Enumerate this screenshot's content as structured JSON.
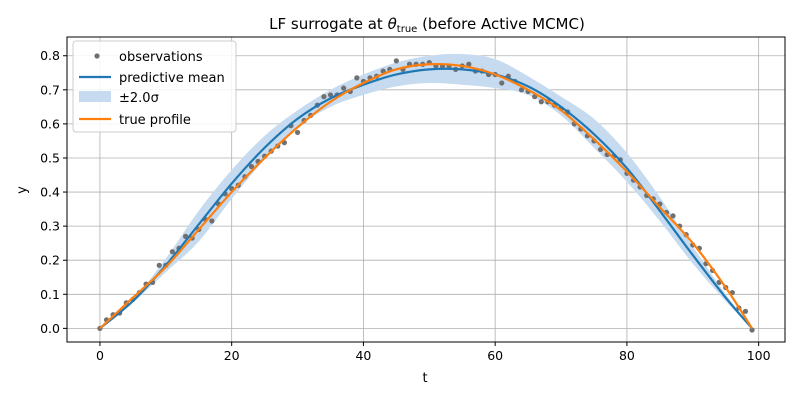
{
  "chart_data": {
    "type": "line",
    "title": "LF surrogate at θtrue (before Active MCMC)",
    "title_parts": {
      "prefix": "LF surrogate at ",
      "symbol": "θ",
      "subscript": "true",
      "suffix": " (before Active MCMC)"
    },
    "xlabel": "t",
    "ylabel": "y",
    "xlim": [
      -5,
      104
    ],
    "ylim": [
      -0.04,
      0.855
    ],
    "xticks": [
      0,
      20,
      40,
      60,
      80,
      100
    ],
    "yticks": [
      0.0,
      0.1,
      0.2,
      0.3,
      0.4,
      0.5,
      0.6,
      0.7,
      0.8
    ],
    "xtick_labels": [
      "0",
      "20",
      "40",
      "60",
      "80",
      "100"
    ],
    "ytick_labels": [
      "0.0",
      "0.1",
      "0.2",
      "0.3",
      "0.4",
      "0.5",
      "0.6",
      "0.7",
      "0.8"
    ],
    "grid": true,
    "legend": {
      "position": "upper-left",
      "entries": [
        {
          "label": "observations",
          "kind": "marker",
          "color": "#707070"
        },
        {
          "label": "predictive mean",
          "kind": "line",
          "color": "#1f77b4"
        },
        {
          "label": "±2.0σ",
          "kind": "band",
          "color": "#c6dbef"
        },
        {
          "label": "true profile",
          "kind": "line",
          "color": "#ff7f0e"
        }
      ]
    },
    "observations": {
      "name": "observations",
      "color": "#707070",
      "x": [
        0,
        1,
        2,
        3,
        4,
        5,
        6,
        7,
        8,
        9,
        10,
        11,
        12,
        13,
        14,
        15,
        16,
        17,
        18,
        19,
        20,
        21,
        22,
        23,
        24,
        25,
        26,
        27,
        28,
        29,
        30,
        31,
        32,
        33,
        34,
        35,
        36,
        37,
        38,
        39,
        40,
        41,
        42,
        43,
        44,
        45,
        46,
        47,
        48,
        49,
        50,
        51,
        52,
        53,
        54,
        55,
        56,
        57,
        58,
        59,
        60,
        61,
        62,
        63,
        64,
        65,
        66,
        67,
        68,
        69,
        70,
        71,
        72,
        73,
        74,
        75,
        76,
        77,
        78,
        79,
        80,
        81,
        82,
        83,
        84,
        85,
        86,
        87,
        88,
        89,
        90,
        91,
        92,
        93,
        94,
        95,
        96,
        97,
        98,
        99
      ],
      "y": [
        0.0,
        0.025,
        0.04,
        0.045,
        0.075,
        0.085,
        0.105,
        0.13,
        0.135,
        0.185,
        0.185,
        0.225,
        0.235,
        0.27,
        0.265,
        0.29,
        0.32,
        0.315,
        0.365,
        0.395,
        0.41,
        0.42,
        0.445,
        0.475,
        0.49,
        0.505,
        0.52,
        0.535,
        0.545,
        0.595,
        0.575,
        0.61,
        0.625,
        0.655,
        0.68,
        0.685,
        0.685,
        0.705,
        0.695,
        0.735,
        0.725,
        0.735,
        0.74,
        0.755,
        0.76,
        0.785,
        0.76,
        0.775,
        0.775,
        0.775,
        0.78,
        0.77,
        0.77,
        0.77,
        0.76,
        0.77,
        0.775,
        0.755,
        0.755,
        0.745,
        0.745,
        0.72,
        0.74,
        0.725,
        0.7,
        0.695,
        0.68,
        0.665,
        0.665,
        0.655,
        0.645,
        0.635,
        0.6,
        0.585,
        0.565,
        0.55,
        0.525,
        0.51,
        0.505,
        0.495,
        0.455,
        0.435,
        0.415,
        0.39,
        0.38,
        0.365,
        0.34,
        0.33,
        0.3,
        0.275,
        0.245,
        0.235,
        0.19,
        0.17,
        0.135,
        0.12,
        0.105,
        0.06,
        0.05,
        -0.005
      ]
    },
    "predictive_mean": {
      "name": "predictive mean",
      "color": "#1f77b4",
      "x": [
        0,
        5,
        10,
        15,
        20,
        25,
        30,
        35,
        40,
        45,
        50,
        55,
        60,
        65,
        70,
        75,
        80,
        85,
        90,
        95,
        99
      ],
      "y": [
        0.0,
        0.08,
        0.185,
        0.305,
        0.425,
        0.53,
        0.615,
        0.675,
        0.715,
        0.745,
        0.76,
        0.76,
        0.745,
        0.71,
        0.65,
        0.57,
        0.47,
        0.345,
        0.215,
        0.09,
        0.0
      ],
      "band_sigma_multiplier": 2.0,
      "band_lower": [
        0.0,
        0.075,
        0.165,
        0.255,
        0.38,
        0.495,
        0.59,
        0.65,
        0.685,
        0.71,
        0.72,
        0.715,
        0.705,
        0.685,
        0.625,
        0.53,
        0.43,
        0.315,
        0.19,
        0.08,
        0.0
      ],
      "band_upper": [
        0.0,
        0.085,
        0.205,
        0.345,
        0.465,
        0.565,
        0.64,
        0.7,
        0.745,
        0.78,
        0.8,
        0.805,
        0.79,
        0.74,
        0.68,
        0.615,
        0.515,
        0.385,
        0.24,
        0.1,
        0.0
      ]
    },
    "true_profile": {
      "name": "true profile",
      "color": "#ff7f0e",
      "x": [
        0,
        5,
        10,
        15,
        20,
        25,
        30,
        35,
        40,
        45,
        50,
        55,
        60,
        65,
        70,
        75,
        80,
        85,
        90,
        95,
        99
      ],
      "y": [
        0.0,
        0.09,
        0.18,
        0.29,
        0.4,
        0.5,
        0.59,
        0.665,
        0.72,
        0.76,
        0.775,
        0.77,
        0.745,
        0.7,
        0.64,
        0.555,
        0.46,
        0.355,
        0.25,
        0.12,
        0.0
      ]
    }
  }
}
